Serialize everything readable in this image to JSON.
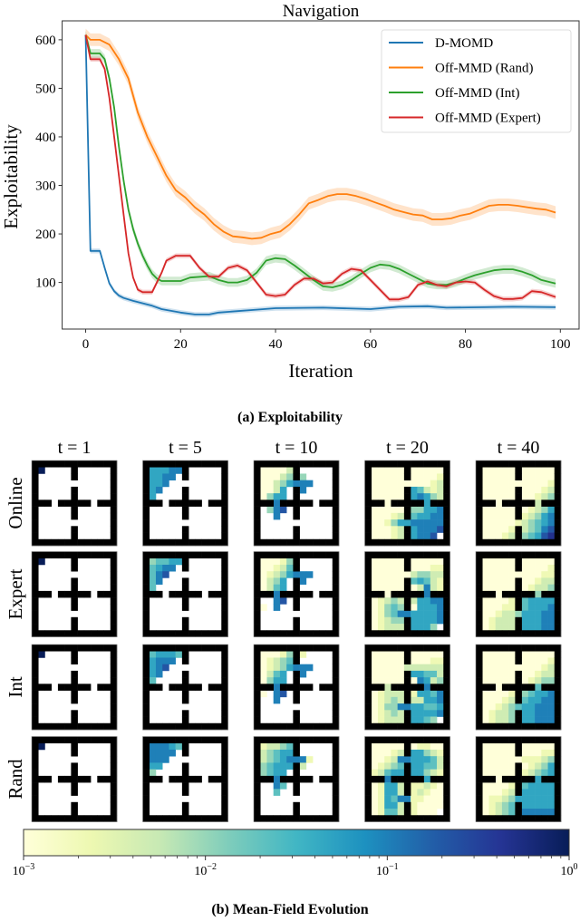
{
  "chart_data": [
    {
      "type": "line",
      "title": "Navigation",
      "xlabel": "Iteration",
      "ylabel": "Exploitability",
      "xlim": [
        -4.95,
        103.95
      ],
      "ylim": [
        4,
        639
      ],
      "xticks": [
        0,
        20,
        40,
        60,
        80,
        100
      ],
      "yticks": [
        100,
        200,
        300,
        400,
        500,
        600
      ],
      "grid": false,
      "legend_position": "top-right",
      "caption": "(a) Exploitability",
      "series": [
        {
          "name": "D-MOMD",
          "color": "#1f77b4",
          "band": 5,
          "points": [
            [
              0,
              610
            ],
            [
              1,
              165
            ],
            [
              3,
              165
            ],
            [
              4,
              130
            ],
            [
              5,
              98
            ],
            [
              6,
              82
            ],
            [
              7,
              73
            ],
            [
              8,
              68
            ],
            [
              10,
              62
            ],
            [
              14,
              52
            ],
            [
              16,
              45
            ],
            [
              20,
              38
            ],
            [
              23,
              34
            ],
            [
              26,
              34
            ],
            [
              28,
              38
            ],
            [
              32,
              41
            ],
            [
              36,
              44
            ],
            [
              40,
              47
            ],
            [
              50,
              48
            ],
            [
              60,
              45
            ],
            [
              66,
              50
            ],
            [
              72,
              51
            ],
            [
              76,
              48
            ],
            [
              84,
              49
            ],
            [
              90,
              50
            ],
            [
              99,
              49
            ]
          ]
        },
        {
          "name": "Off-MMD (Rand)",
          "color": "#ff7f0e",
          "band": 13,
          "points": [
            [
              0,
              610
            ],
            [
              1,
              600
            ],
            [
              3,
              600
            ],
            [
              5,
              590
            ],
            [
              7,
              560
            ],
            [
              9,
              520
            ],
            [
              11,
              450
            ],
            [
              13,
              400
            ],
            [
              15,
              360
            ],
            [
              17,
              320
            ],
            [
              19,
              290
            ],
            [
              21,
              275
            ],
            [
              23,
              255
            ],
            [
              25,
              240
            ],
            [
              27,
              220
            ],
            [
              29,
              205
            ],
            [
              31,
              195
            ],
            [
              33,
              193
            ],
            [
              35,
              190
            ],
            [
              37,
              192
            ],
            [
              39,
              200
            ],
            [
              41,
              205
            ],
            [
              43,
              220
            ],
            [
              45,
              240
            ],
            [
              47,
              263
            ],
            [
              49,
              270
            ],
            [
              51,
              278
            ],
            [
              53,
              282
            ],
            [
              55,
              282
            ],
            [
              57,
              278
            ],
            [
              59,
              272
            ],
            [
              61,
              265
            ],
            [
              63,
              258
            ],
            [
              65,
              250
            ],
            [
              67,
              245
            ],
            [
              69,
              240
            ],
            [
              71,
              238
            ],
            [
              73,
              230
            ],
            [
              75,
              230
            ],
            [
              77,
              232
            ],
            [
              79,
              238
            ],
            [
              81,
              242
            ],
            [
              83,
              250
            ],
            [
              85,
              258
            ],
            [
              87,
              260
            ],
            [
              89,
              260
            ],
            [
              91,
              258
            ],
            [
              93,
              255
            ],
            [
              95,
              252
            ],
            [
              97,
              250
            ],
            [
              99,
              244
            ]
          ]
        },
        {
          "name": "Off-MMD (Int)",
          "color": "#2ca02c",
          "band": 9,
          "points": [
            [
              0,
              610
            ],
            [
              1,
              572
            ],
            [
              3,
              572
            ],
            [
              4,
              560
            ],
            [
              5,
              520
            ],
            [
              6,
              460
            ],
            [
              7,
              380
            ],
            [
              8,
              310
            ],
            [
              9,
              250
            ],
            [
              10,
              210
            ],
            [
              11,
              180
            ],
            [
              12,
              155
            ],
            [
              13,
              135
            ],
            [
              14,
              118
            ],
            [
              15,
              108
            ],
            [
              16,
              103
            ],
            [
              20,
              103
            ],
            [
              22,
              110
            ],
            [
              26,
              113
            ],
            [
              28,
              105
            ],
            [
              30,
              100
            ],
            [
              32,
              100
            ],
            [
              34,
              105
            ],
            [
              36,
              120
            ],
            [
              38,
              145
            ],
            [
              40,
              150
            ],
            [
              42,
              148
            ],
            [
              44,
              135
            ],
            [
              46,
              120
            ],
            [
              48,
              105
            ],
            [
              50,
              92
            ],
            [
              52,
              90
            ],
            [
              54,
              95
            ],
            [
              56,
              105
            ],
            [
              58,
              118
            ],
            [
              60,
              130
            ],
            [
              62,
              137
            ],
            [
              64,
              135
            ],
            [
              66,
              128
            ],
            [
              68,
              118
            ],
            [
              70,
              108
            ],
            [
              72,
              98
            ],
            [
              74,
              95
            ],
            [
              76,
              95
            ],
            [
              78,
              100
            ],
            [
              80,
              108
            ],
            [
              82,
              115
            ],
            [
              84,
              120
            ],
            [
              86,
              125
            ],
            [
              88,
              127
            ],
            [
              90,
              127
            ],
            [
              92,
              122
            ],
            [
              94,
              115
            ],
            [
              96,
              105
            ],
            [
              99,
              98
            ]
          ]
        },
        {
          "name": "Off-MMD (Expert)",
          "color": "#d62728",
          "band": 5,
          "points": [
            [
              0,
              610
            ],
            [
              1,
              560
            ],
            [
              3,
              560
            ],
            [
              4,
              540
            ],
            [
              5,
              480
            ],
            [
              6,
              400
            ],
            [
              7,
              320
            ],
            [
              8,
              240
            ],
            [
              9,
              160
            ],
            [
              10,
              110
            ],
            [
              11,
              85
            ],
            [
              12,
              80
            ],
            [
              14,
              80
            ],
            [
              16,
              120
            ],
            [
              17,
              145
            ],
            [
              19,
              155
            ],
            [
              22,
              155
            ],
            [
              24,
              130
            ],
            [
              26,
              112
            ],
            [
              28,
              112
            ],
            [
              30,
              130
            ],
            [
              32,
              135
            ],
            [
              34,
              125
            ],
            [
              36,
              100
            ],
            [
              38,
              75
            ],
            [
              40,
              72
            ],
            [
              42,
              75
            ],
            [
              44,
              95
            ],
            [
              46,
              108
            ],
            [
              48,
              108
            ],
            [
              50,
              98
            ],
            [
              52,
              100
            ],
            [
              54,
              118
            ],
            [
              56,
              128
            ],
            [
              58,
              125
            ],
            [
              60,
              105
            ],
            [
              62,
              85
            ],
            [
              64,
              65
            ],
            [
              66,
              65
            ],
            [
              68,
              70
            ],
            [
              70,
              95
            ],
            [
              72,
              102
            ],
            [
              74,
              95
            ],
            [
              76,
              92
            ],
            [
              78,
              100
            ],
            [
              80,
              102
            ],
            [
              82,
              100
            ],
            [
              84,
              85
            ],
            [
              86,
              72
            ],
            [
              88,
              66
            ],
            [
              90,
              66
            ],
            [
              92,
              68
            ],
            [
              94,
              82
            ],
            [
              96,
              80
            ],
            [
              99,
              70
            ]
          ]
        }
      ]
    },
    {
      "type": "heatmap",
      "caption": "(b) Mean-Field Evolution",
      "column_titles": [
        "t = 1",
        "t = 5",
        "t = 10",
        "t = 20",
        "t = 40"
      ],
      "row_titles": [
        "Online",
        "Expert",
        "Int",
        "Rand"
      ],
      "colorbar": {
        "scale": "log",
        "range": [
          0.001,
          1
        ],
        "tick_bases": [
          "10",
          "10",
          "10",
          "10"
        ],
        "tick_exponents": [
          "−3",
          "−2",
          "−1",
          "0"
        ],
        "colormap": [
          "#ffffd9",
          "#edf8b1",
          "#c7e9b4",
          "#7fcdbb",
          "#41b6c4",
          "#1d91c0",
          "#225ea8",
          "#253494",
          "#081d58"
        ]
      },
      "level_encoding": "digit d = density 10^(-3 + d/3); '.' = zero",
      "maze": [
        "#############",
        "#.....#.....#",
        "#.....#.....#",
        "#...........#",
        "#.....#.....#",
        "#.....#.....#",
        "###.#####.###",
        "#.....#.....#",
        "#.....#.....#",
        "#...........#",
        "#.....#.....#",
        "#.....#.....#",
        "#############"
      ],
      "panels": [
        [
          [
            "9"
          ],
          [
            "55566",
            "5566",
            "556",
            "56",
            "5"
          ],
          [
            "00002x.....",
            "00023x3....",
            "00235666...",
            "0025.x6....",
            "0355.x.....",
            "xx6xxxxx.xx",
            ".367.x.....",
            "..6..x....."
          ],
          [
            "00000x00000",
            "00000x00001",
            "00000000012",
            "00000x54212",
            "00000x56532",
            "xx0xxxxx5xx",
            "00000x33556",
            "00012x45566",
            "00135566666",
            "00012x56667",
            "00012x5667."
          ],
          [
            "00000x00000",
            "00000x00000",
            "00000000001",
            "00000x00012",
            "00000x00123",
            "xx0xxxxx2xx",
            "00000x01235",
            "00000x12356",
            "00000123456",
            "00001x23467",
            "00012x34578"
          ]
        ],
        [
          [
            "9"
          ],
          [
            "34455",
            "4566",
            "467",
            "46",
            "4"
          ],
          [
            "00013x.....",
            "00124x.....",
            "01235666...",
            "0235.x6....",
            "0245.x.....",
            "xx6xxxxx.xx",
            "..67.x.....",
            "0.6..x....."
          ],
          [
            "00000x00000",
            "00000x00011",
            "00000023322",
            "00000x45421",
            "00000x02621",
            "xx0xxxxx6xx",
            "01232x25566",
            "01343x05556",
            "01346655556",
            "01233x55556",
            "01222x5553."
          ],
          [
            "00000x00000",
            "00000x00001",
            "00000000011",
            "00000x00122",
            "00000x01223",
            "xx0xxxxx3xx",
            "00001x45555",
            "00011x45556",
            "00122355566",
            "01222x55566",
            "01222x55566"
          ]
        ],
        [
          [
            "9"
          ],
          [
            "45554",
            "5666",
            "567",
            "56",
            "4"
          ],
          [
            "00013x1....",
            "01234x.....",
            "01235666...",
            "0245.x6....",
            "0355.x.....",
            "xx6xxxxx.xx",
            "0.67.x.....",
            "..6..x....."
          ],
          [
            "00000x00000",
            "00000x00011",
            "00000222222",
            "00000x55442",
            "00000x06523",
            "xx2xxxxx6xx",
            "01222x15546",
            "01232x22556",
            "01336655445",
            "01232x55556",
            "01222x5543."
          ],
          [
            "00000x00000",
            "00000x00001",
            "00000000012",
            "00000x00122",
            "00000x01233",
            "xx0xxxxx4xx",
            "00001x34556",
            "00012x45566",
            "00123455666",
            "01223x55666",
            "01223x55666"
          ]
        ],
        [
          [
            "9"
          ],
          [
            "66654",
            "6666",
            "666",
            "55",
            "3"
          ],
          [
            "12234x.....",
            "23455x.....",
            "23456661...",
            "34555x2....",
            "3455.x.....",
            "xx6xxxxx.xx",
            "..64.x.....",
            "..4..x....."
          ],
          [
            "00000x01100",
            "00012x55321",
            "00126655542",
            "01234x55442",
            "12455x55321",
            "xx6xxxxx5xx",
            "01552x11210",
            "01552x12100",
            "01546611000",
            "01552x10000",
            "01442x1000."
          ],
          [
            "00000x00000",
            "00000x00011",
            "00000011123",
            "00000x01235",
            "00000x12345",
            "xx0xxxxx5xx",
            "00001x45555",
            "00012x55555",
            "01123555555",
            "01234x55555",
            "01234x66666"
          ]
        ]
      ]
    }
  ]
}
